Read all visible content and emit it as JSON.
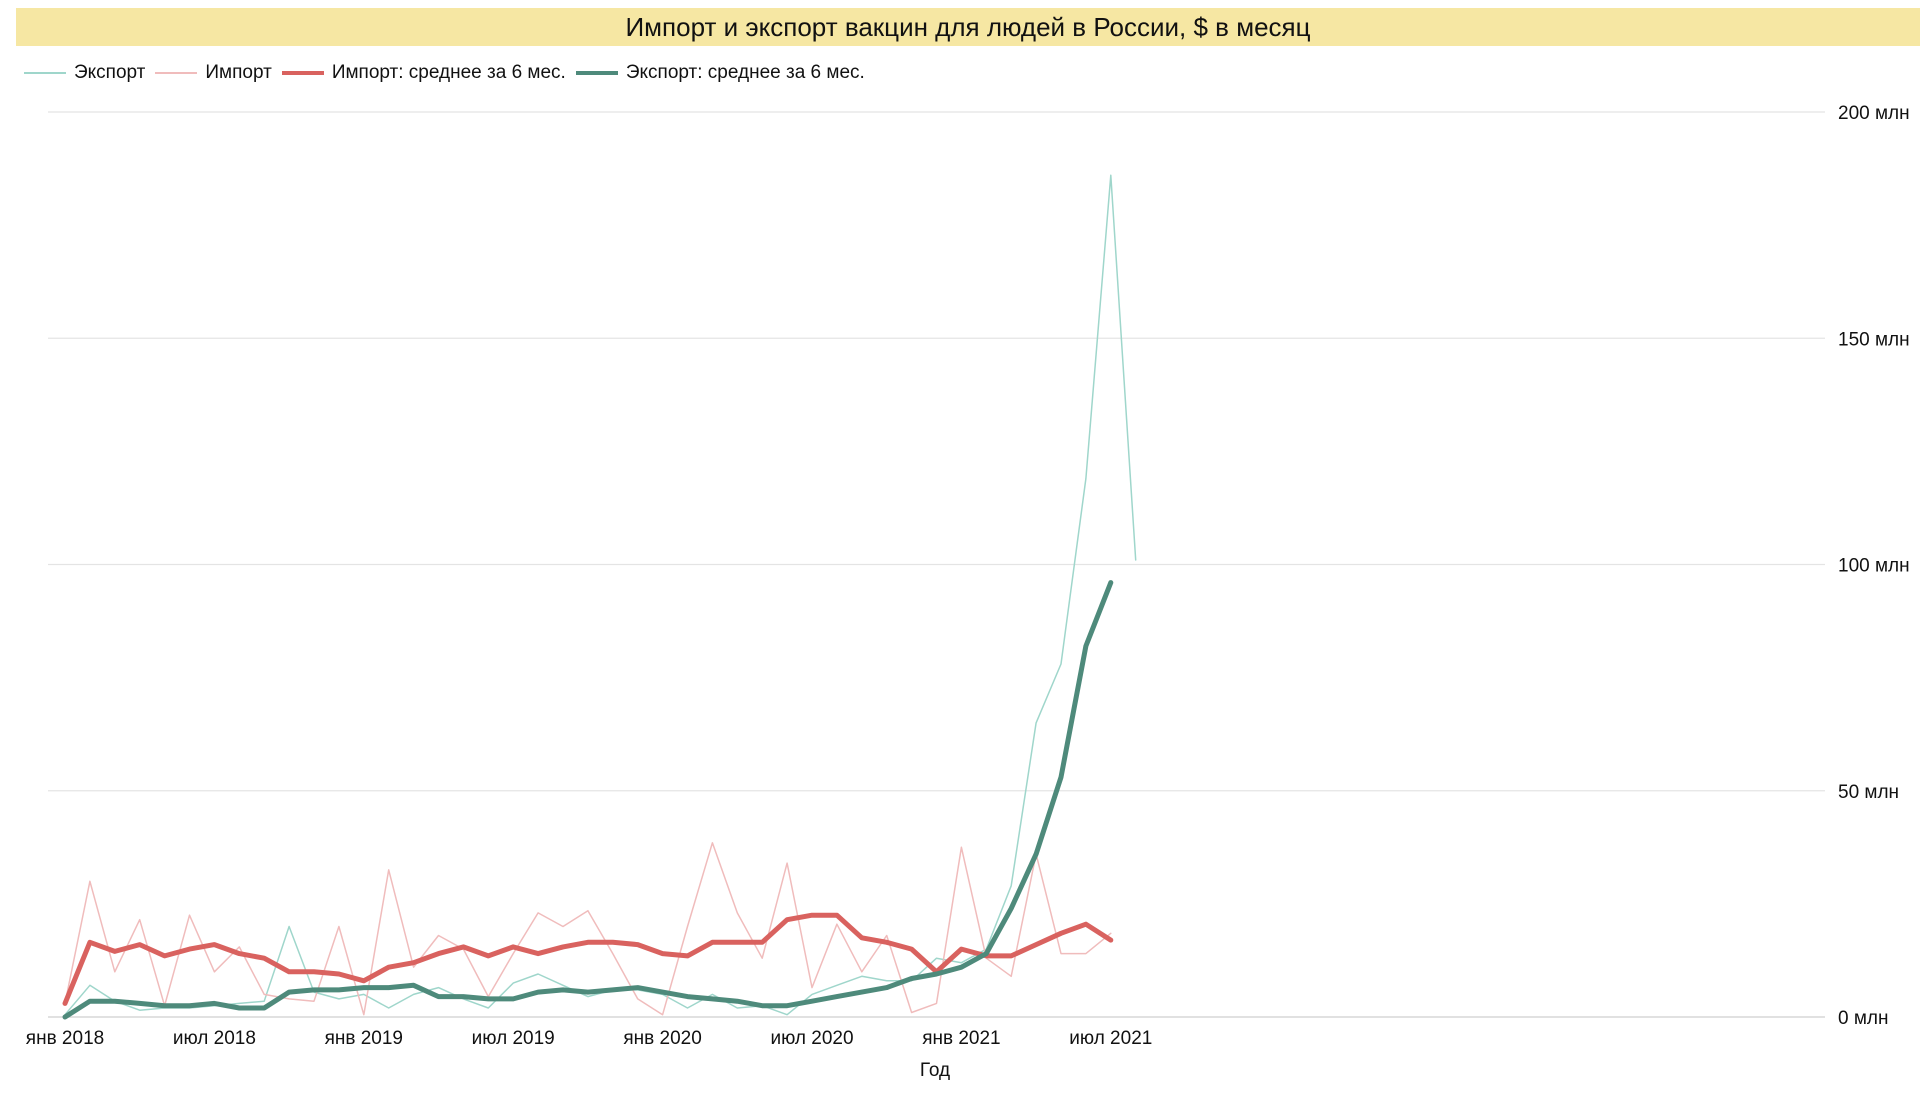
{
  "chart_data": {
    "type": "line",
    "title": "Импорт и экспорт вакцин для людей в России, $ в месяц",
    "xlabel": "Год",
    "ylabel": "",
    "x_ticks": [
      "янв 2018",
      "июл 2018",
      "янв 2019",
      "июл 2019",
      "янв 2020",
      "июл 2020",
      "янв 2021",
      "июл 2021"
    ],
    "y_ticks": [
      "0 млн",
      "50 млн",
      "100 млн",
      "150 млн",
      "200 млн"
    ],
    "ylim": [
      0,
      200
    ],
    "x_start": "2018-01",
    "grid": "horizontal",
    "legend_position": "top-left",
    "series": [
      {
        "name": "Экспорт",
        "color": "#9fd6cb",
        "width": 1.5,
        "values": [
          0.5,
          7,
          3.5,
          1.5,
          2,
          2,
          2.5,
          3,
          3.5,
          20,
          5.5,
          4,
          5,
          2,
          5,
          6.5,
          4,
          2,
          7.5,
          9.5,
          7,
          4.5,
          6,
          6,
          5,
          2,
          5,
          2,
          2.5,
          0.5,
          5,
          7,
          9,
          8,
          8,
          13,
          12,
          15,
          29,
          65,
          78,
          119,
          186,
          101
        ]
      },
      {
        "name": "Импорт",
        "color": "#f0bcbc",
        "width": 1.5,
        "values": [
          3,
          30,
          10,
          21.5,
          2.5,
          22.5,
          10,
          15.5,
          5,
          4,
          3.5,
          20,
          0.5,
          32.5,
          11,
          18,
          15,
          4.5,
          14,
          23,
          20,
          23.5,
          14,
          4,
          0.5,
          20,
          38.5,
          23,
          13,
          34,
          6.5,
          20.5,
          10,
          18,
          1,
          3,
          37.5,
          13,
          9,
          36,
          14,
          14,
          18.5
        ]
      },
      {
        "name": "Импорт: среднее за 6 мес.",
        "color": "#d9625f",
        "width": 5,
        "values": [
          3,
          16.5,
          14.5,
          16,
          13.5,
          15,
          16,
          14,
          13,
          10,
          10,
          9.5,
          8,
          11,
          12,
          14,
          15.5,
          13.5,
          15.5,
          14,
          15.5,
          16.5,
          16.5,
          16,
          14,
          13.5,
          16.5,
          16.5,
          16.5,
          21.5,
          22.5,
          22.5,
          17.5,
          16.5,
          15,
          10,
          15,
          13.5,
          13.5,
          16,
          18.5,
          20.5,
          17
        ]
      },
      {
        "name": "Экспорт: среднее за 6 мес.",
        "color": "#4e8a7b",
        "width": 5,
        "values": [
          0,
          3.5,
          3.5,
          3,
          2.5,
          2.5,
          3,
          2,
          2,
          5.5,
          6,
          6,
          6.5,
          6.5,
          7,
          4.5,
          4.5,
          4,
          4,
          5.5,
          6,
          5.5,
          6,
          6.5,
          5.5,
          4.5,
          4,
          3.5,
          2.5,
          2.5,
          3.5,
          4.5,
          5.5,
          6.5,
          8.5,
          9.5,
          11,
          14,
          24,
          36,
          53,
          82,
          96
        ]
      }
    ]
  }
}
